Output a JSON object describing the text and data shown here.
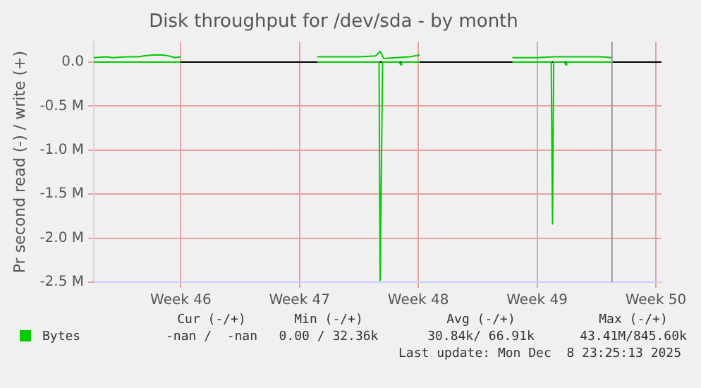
{
  "chart_data": {
    "type": "line",
    "title": "Disk throughput for /dev/sda - by month",
    "ylabel": "Pr second read (-) / write (+)",
    "x": [
      "2025-11-04T21:00",
      "2025-11-05T14:00",
      "2025-11-06T00:00",
      "2025-11-06T20:00",
      "2025-11-07T12:00",
      "2025-11-07T20:00",
      "2025-11-08T08:00",
      "2025-11-08T23:00",
      "2025-11-09T07:00",
      "2025-11-09T16:00",
      "2025-11-10T00:00",
      "2025-11-13T12:00",
      "2025-11-18T01:00",
      "2025-11-19T07:00",
      "2025-11-20T14:00",
      "2025-11-21T11:30",
      "2025-11-21T18:00",
      "2025-11-21T23:00",
      "2025-11-22T16:00",
      "2025-11-23T12:00",
      "2025-11-24T02:00",
      "2025-11-26T19:00",
      "2025-11-29T13:00",
      "2025-12-01T00:00",
      "2025-12-01T23:30",
      "2025-12-02T16:20",
      "2025-12-03T22:30",
      "2025-12-04T19:00",
      "2025-12-05T10:00"
    ],
    "series": [
      {
        "name": "Bytes",
        "color": "#00cc00",
        "values": [
          0.05,
          0.06,
          0.05,
          0.06,
          0.06,
          0.07,
          0.08,
          0.08,
          0.07,
          0.05,
          0.06,
          null,
          0.06,
          0.06,
          0.06,
          0.07,
          0.12,
          0.04,
          0.05,
          0.06,
          0.08,
          null,
          0.05,
          0.05,
          0.06,
          0.06,
          0.06,
          0.06,
          0.05
        ]
      },
      {
        "color": "#00cc00",
        "x": [
          "2025-11-04T21:00",
          "2025-11-10T00:00",
          "2025-11-13T12:00",
          "2025-11-18T01:00",
          "2025-11-21T16:30",
          "2025-11-21T18:00",
          "2025-11-21T21:30",
          "2025-11-22T21:00",
          "2025-11-22T23:00",
          "2025-11-23T00:30",
          "2025-11-24T02:00",
          "2025-11-26T19:00",
          "2025-11-29T13:00",
          "2025-12-01T20:00",
          "2025-12-01T21:50",
          "2025-12-01T23:30",
          "2025-12-02T14:30",
          "2025-12-02T16:20",
          "2025-12-02T18:00",
          "2025-12-05T10:00"
        ],
        "values": [
          0,
          0,
          null,
          0,
          0,
          -2.48,
          0,
          0,
          -0.03,
          0,
          0,
          null,
          0,
          0,
          -1.84,
          0,
          0,
          -0.03,
          0,
          0
        ]
      }
    ],
    "xlim": [
      "2025-11-04T21:00",
      "2025-12-08T08:00"
    ],
    "xticks": [
      {
        "value": "2025-11-10",
        "label": "Week 46"
      },
      {
        "value": "2025-11-17",
        "label": "Week 47"
      },
      {
        "value": "2025-11-24",
        "label": "Week 48"
      },
      {
        "value": "2025-12-01",
        "label": "Week 49"
      },
      {
        "value": "2025-12-08",
        "label": "Week 50"
      }
    ],
    "ylim": [
      -2.5,
      0.23
    ],
    "yticks": [
      {
        "value": 0,
        "label": "0.0"
      },
      {
        "value": -0.5,
        "label": "-0.5 M"
      },
      {
        "value": -1,
        "label": "-1.0 M"
      },
      {
        "value": -1.5,
        "label": "-1.5 M"
      },
      {
        "value": -2,
        "label": "-2.0 M"
      },
      {
        "value": -2.5,
        "label": "-2.5 M"
      }
    ],
    "ref_lines": [
      {
        "axis": "x",
        "value": "2025-12-05T10:00",
        "color": "#999999"
      }
    ],
    "grid": true,
    "legend": "bottom left",
    "marker": "none",
    "line_style": "solid",
    "annotations": [
      "Cur (-/+)",
      "Min (-/+)",
      "Avg (-/+)",
      "Max (-/+)",
      "-nan /  -nan",
      "0.00 / 32.36k",
      "30.84k/ 66.91k",
      "43.41M/845.60k",
      "Last update: Mon Dec  8 23:25:13 2025"
    ]
  }
}
